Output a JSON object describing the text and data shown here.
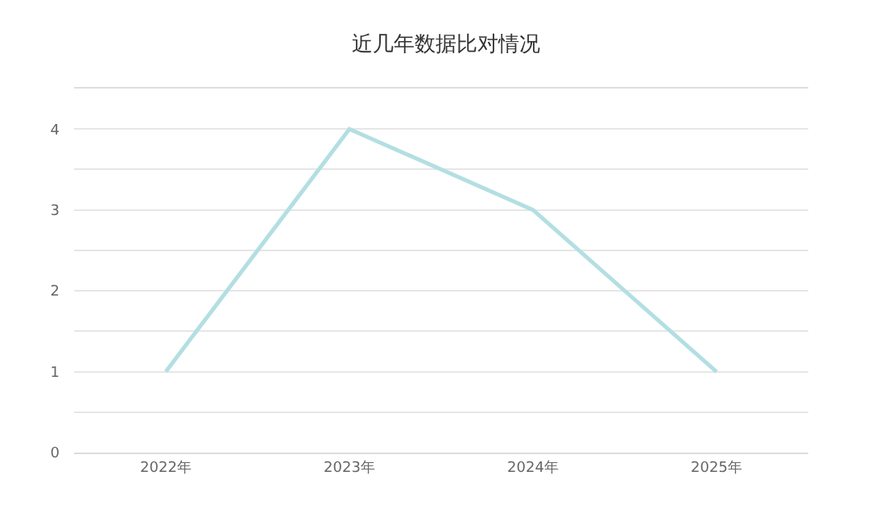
{
  "chart_data": {
    "type": "line",
    "title": "近几年数据比对情况",
    "categories": [
      "2022年",
      "2023年",
      "2024年",
      "2025年"
    ],
    "series": [
      {
        "color": "#b3dfe2",
        "values": [
          1,
          4,
          3,
          1
        ]
      }
    ],
    "ylim": [
      0,
      4.5
    ],
    "yticks": [
      0,
      {
        "value": 0.5,
        "label": null
      },
      1,
      {
        "value": 1.5,
        "label": null
      },
      2,
      {
        "value": 2.5,
        "label": null
      },
      3,
      {
        "value": 3.5,
        "label": null
      },
      4,
      {
        "value": 4.5,
        "label": null
      }
    ],
    "grid": "y",
    "marker": "none",
    "line_style": "solid"
  }
}
